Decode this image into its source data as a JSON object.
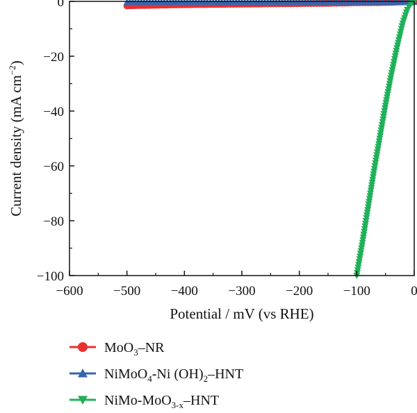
{
  "chart_data": {
    "type": "line",
    "title": "",
    "xlabel": "Potential / mV (vs RHE)",
    "ylabel": {
      "text": "Current density (mA cm",
      "sup": "−2",
      "close": ")"
    },
    "xlim": [
      -600,
      0
    ],
    "ylim": [
      -100,
      0
    ],
    "xticks": [
      -600,
      -500,
      -400,
      -300,
      -200,
      -100,
      0
    ],
    "yticks": [
      0,
      -20,
      -40,
      -60,
      -80,
      -100
    ],
    "xtick_labels": [
      "−600",
      "−500",
      "−400",
      "−300",
      "−200",
      "−100",
      "0"
    ],
    "ytick_labels": [
      "0",
      "−20",
      "−40",
      "−60",
      "−80",
      "−100"
    ],
    "legend_position": "below-plot",
    "series": [
      {
        "name": "MoO3–NR",
        "name_parts": {
          "a": "MoO",
          "sub1": "3",
          "b": "–NR",
          "sub2": "",
          "c": ""
        },
        "color": "#e8312f",
        "marker": "circle",
        "x": [
          -500,
          -450,
          -400,
          -350,
          -300,
          -250,
          -200,
          -150,
          -100,
          -50,
          -20,
          0
        ],
        "y": [
          -1.6,
          -1.4,
          -1.2,
          -1.1,
          -1.0,
          -0.9,
          -0.8,
          -0.7,
          -0.5,
          -0.4,
          -0.2,
          0
        ]
      },
      {
        "name": "NiMoO4-Ni (OH)2–HNT",
        "name_parts": {
          "a": "NiMoO",
          "sub1": "4",
          "b": "-Ni (OH)",
          "sub2": "2",
          "c": "–HNT"
        },
        "color": "#3565b0",
        "marker": "triangle-up",
        "x": [
          -500,
          -450,
          -400,
          -350,
          -300,
          -250,
          -200,
          -150,
          -100,
          -50,
          -20,
          0
        ],
        "y": [
          -0.3,
          -0.3,
          -0.3,
          -0.3,
          -0.3,
          -0.3,
          -0.3,
          -0.3,
          -0.3,
          -0.3,
          -0.3,
          -0.3
        ]
      },
      {
        "name": "NiMo-MoO3-x–HNT",
        "name_parts": {
          "a": "NiMo-MoO",
          "sub1": "3-x",
          "b": "–HNT",
          "sub2": "",
          "c": ""
        },
        "color": "#21b05a",
        "marker": "triangle-down",
        "x": [
          -100,
          -90,
          -80,
          -70,
          -60,
          -50,
          -40,
          -30,
          -20,
          -12,
          -6,
          -3,
          0
        ],
        "y": [
          -100,
          -88,
          -75,
          -62,
          -50,
          -38,
          -27,
          -17,
          -8,
          -3,
          -1,
          -0.4,
          0
        ]
      }
    ]
  }
}
